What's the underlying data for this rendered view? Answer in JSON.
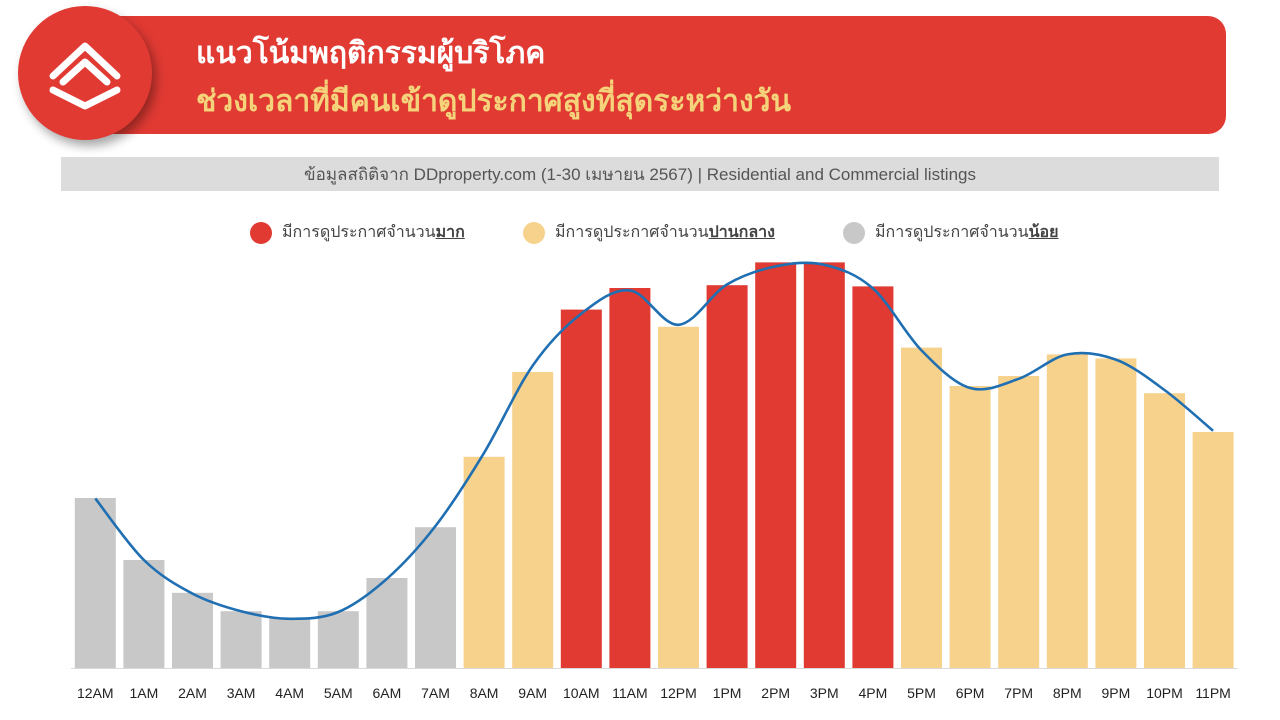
{
  "header": {
    "title": "แนวโน้มพฤติกรรมผู้บริโภค",
    "subtitle": "ช่วงเวลาที่มีคนเข้าดูประกาศสูงที่สุดระหว่างวัน"
  },
  "source_text": "ข้อมูลสถิติจาก DDproperty.com (1-30 เมษายน 2567) | Residential and Commercial listings",
  "legend": [
    {
      "prefix": "มีการดูประกาศจำนวน",
      "emphasis": "มาก",
      "color": "#e03a33"
    },
    {
      "prefix": "มีการดูประกาศจำนวน",
      "emphasis": "ปานกลาง",
      "color": "#f7d28d"
    },
    {
      "prefix": "มีการดูประกาศจำนวน",
      "emphasis": "น้อย",
      "color": "#c8c8c8"
    }
  ],
  "colors": {
    "high": "#e03a33",
    "medium": "#f7d28d",
    "low": "#c8c8c8",
    "line": "#1f6fb2"
  },
  "chart_data": {
    "type": "bar",
    "categories": [
      "12AM",
      "1AM",
      "2AM",
      "3AM",
      "4AM",
      "5AM",
      "6AM",
      "7AM",
      "8AM",
      "9AM",
      "10AM",
      "11AM",
      "12PM",
      "1PM",
      "2PM",
      "3PM",
      "4PM",
      "5PM",
      "6PM",
      "7PM",
      "8PM",
      "9PM",
      "10PM",
      "11PM"
    ],
    "values": [
      42.5,
      27.0,
      18.8,
      14.2,
      12.5,
      14.2,
      22.5,
      35.2,
      52.8,
      74.0,
      89.6,
      95.0,
      85.3,
      95.7,
      101.4,
      101.4,
      95.4,
      80.1,
      70.5,
      73.0,
      78.4,
      77.4,
      68.7,
      59.0
    ],
    "levels": [
      "low",
      "low",
      "low",
      "low",
      "low",
      "low",
      "low",
      "low",
      "medium",
      "medium",
      "high",
      "high",
      "medium",
      "high",
      "high",
      "high",
      "high",
      "medium",
      "medium",
      "medium",
      "medium",
      "medium",
      "medium",
      "medium"
    ],
    "trend_line": [
      42.4,
      27.0,
      18.6,
      14.2,
      12.3,
      14.0,
      22.3,
      35.5,
      53.8,
      75.6,
      88.6,
      94.4,
      85.8,
      95.9,
      100.4,
      100.8,
      94.9,
      79.4,
      70.0,
      72.3,
      78.4,
      77.1,
      69.5,
      59.3
    ],
    "ylim": [
      0,
      105
    ],
    "grid": false,
    "legend_position": "top"
  }
}
